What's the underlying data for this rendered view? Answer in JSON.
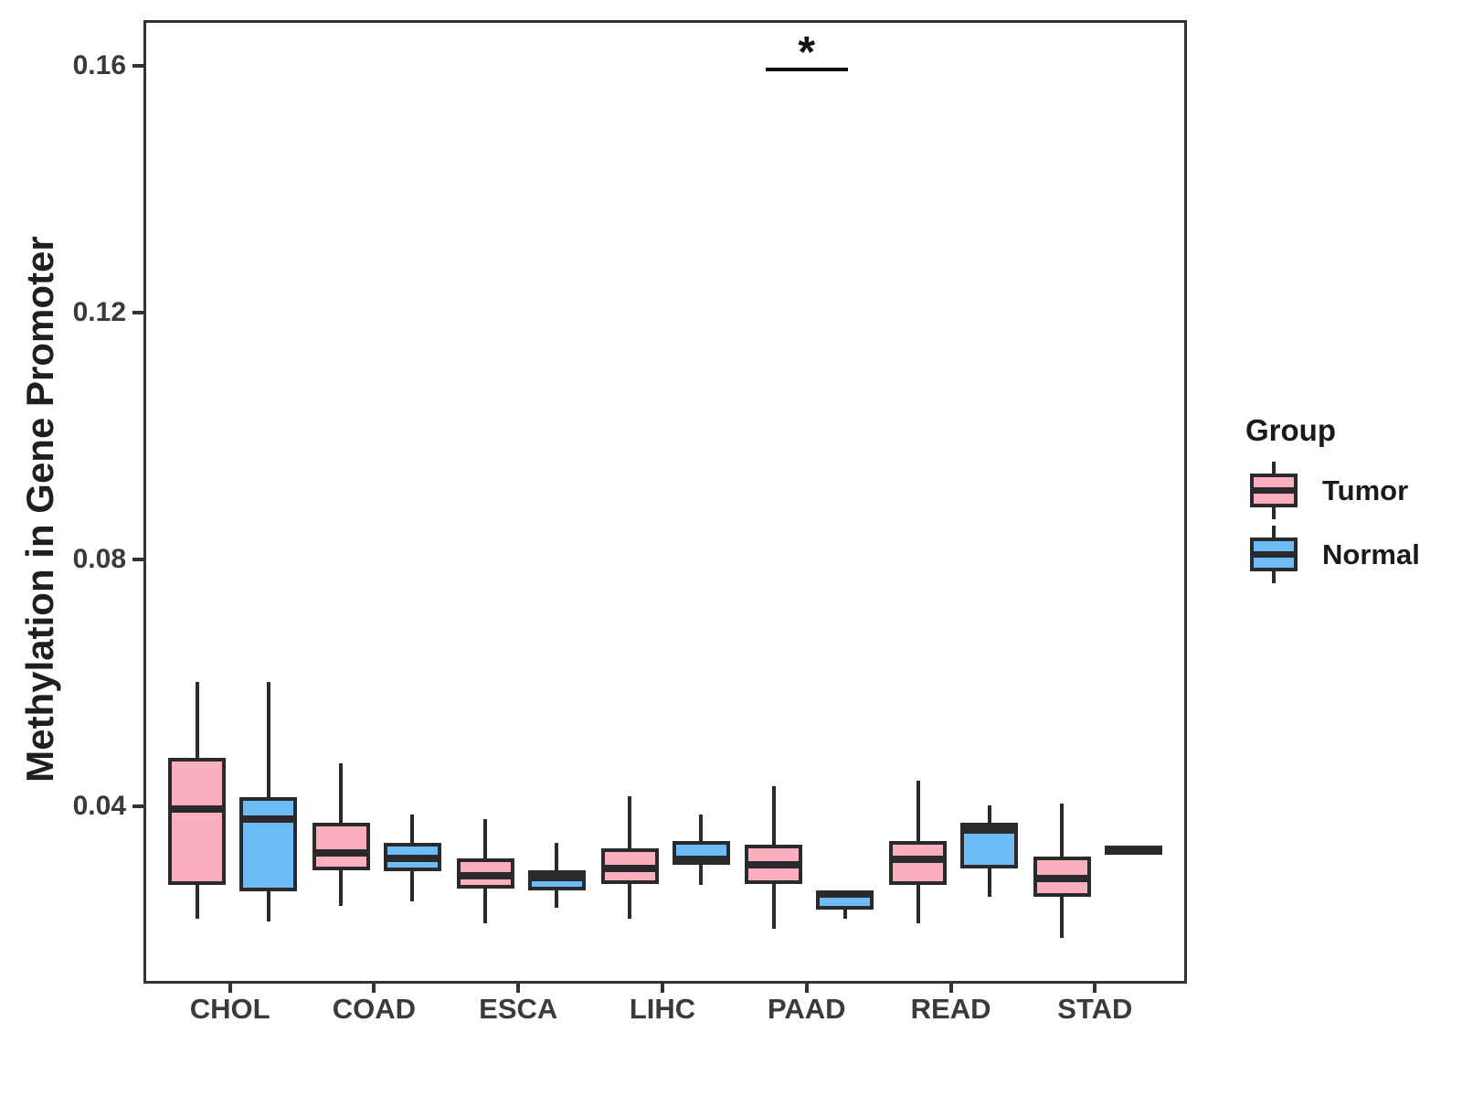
{
  "figure": {
    "background": "#ffffff",
    "y_axis_title": "Methylation in Gene Promoter"
  },
  "legend": {
    "title": "Group",
    "items": [
      {
        "label": "Tumor",
        "color": "#FBAEBE"
      },
      {
        "label": "Normal",
        "color": "#6EBCF5"
      }
    ]
  },
  "colors": {
    "tumor_fill": "#FBAEBE",
    "normal_fill": "#6EBCF5",
    "stroke": "#2a2a2c",
    "axis_line": "#333333",
    "tick_text": "#3a3a3a",
    "annotation": "#111111"
  },
  "chart_data": {
    "type": "boxplot",
    "title": "",
    "xlabel": "",
    "ylabel": "Methylation in Gene Promoter",
    "categories": [
      "CHOL",
      "COAD",
      "ESCA",
      "LIHC",
      "PAAD",
      "READ",
      "STAD"
    ],
    "y_ticks": [
      0.04,
      0.08,
      0.12,
      0.16
    ],
    "y_tick_labels": [
      "0.04",
      "0.08",
      "0.12",
      "0.16"
    ],
    "ylim": [
      0.0122,
      0.1674
    ],
    "grid": false,
    "legend_position": "right",
    "legend_title": "Group",
    "series": [
      {
        "name": "Tumor",
        "color": "#FBAEBE",
        "boxes": [
          {
            "category": "CHOL",
            "median": 0.04,
            "q1": 0.0278,
            "q3": 0.0483,
            "whisker_low": 0.0222,
            "whisker_high": 0.0606
          },
          {
            "category": "COAD",
            "median": 0.033,
            "q1": 0.0301,
            "q3": 0.0378,
            "whisker_low": 0.0243,
            "whisker_high": 0.0475
          },
          {
            "category": "ESCA",
            "median": 0.0293,
            "q1": 0.0271,
            "q3": 0.032,
            "whisker_low": 0.0216,
            "whisker_high": 0.0384
          },
          {
            "category": "LIHC",
            "median": 0.0304,
            "q1": 0.0279,
            "q3": 0.0336,
            "whisker_low": 0.0222,
            "whisker_high": 0.0421
          },
          {
            "category": "PAAD",
            "median": 0.031,
            "q1": 0.0279,
            "q3": 0.0342,
            "whisker_low": 0.0206,
            "whisker_high": 0.0437
          },
          {
            "category": "READ",
            "median": 0.0319,
            "q1": 0.0277,
            "q3": 0.0348,
            "whisker_low": 0.0215,
            "whisker_high": 0.0446
          },
          {
            "category": "STAD",
            "median": 0.0288,
            "q1": 0.0258,
            "q3": 0.0324,
            "whisker_low": 0.0191,
            "whisker_high": 0.0409
          }
        ]
      },
      {
        "name": "Normal",
        "color": "#6EBCF5",
        "boxes": [
          {
            "category": "CHOL",
            "median": 0.0384,
            "q1": 0.0267,
            "q3": 0.0419,
            "whisker_low": 0.0218,
            "whisker_high": 0.0606
          },
          {
            "category": "COAD",
            "median": 0.032,
            "q1": 0.03,
            "q3": 0.0345,
            "whisker_low": 0.0251,
            "whisker_high": 0.0391
          },
          {
            "category": "ESCA",
            "median": 0.0289,
            "q1": 0.0268,
            "q3": 0.0301,
            "whisker_low": 0.024,
            "whisker_high": 0.0345
          },
          {
            "category": "LIHC",
            "median": 0.0319,
            "q1": 0.031,
            "q3": 0.0348,
            "whisker_low": 0.0277,
            "whisker_high": 0.0391
          },
          {
            "category": "PAAD",
            "median": 0.0263,
            "q1": 0.0237,
            "q3": 0.0268,
            "whisker_low": 0.0222,
            "whisker_high": 0.0268
          },
          {
            "category": "READ",
            "median": 0.0367,
            "q1": 0.0304,
            "q3": 0.0378,
            "whisker_low": 0.0258,
            "whisker_high": 0.0406
          },
          {
            "category": "STAD",
            "median": 0.0334,
            "q1": 0.0327,
            "q3": 0.0341,
            "whisker_low": 0.0327,
            "whisker_high": 0.0341
          }
        ]
      }
    ],
    "annotations": [
      {
        "label": "*",
        "category": "PAAD",
        "y": 0.1597
      }
    ]
  }
}
